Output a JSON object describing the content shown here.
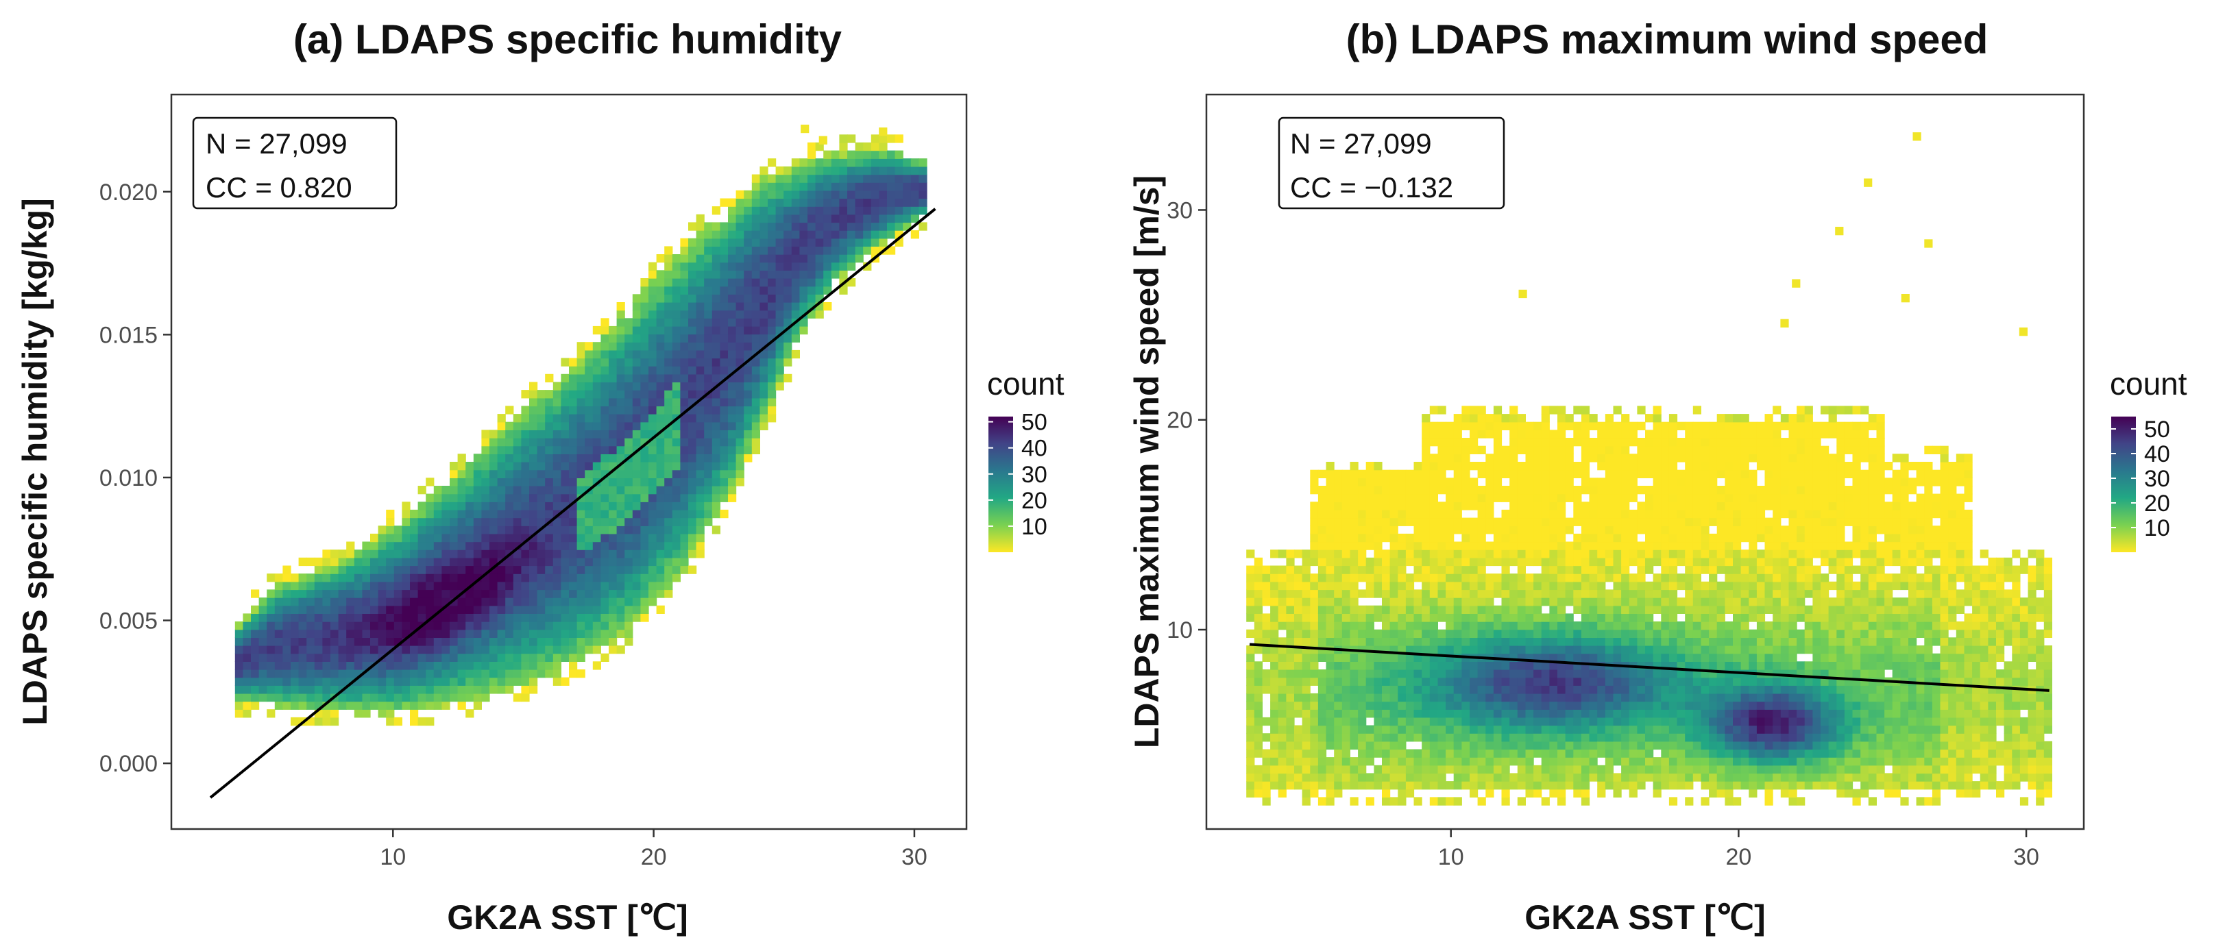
{
  "chart_data": [
    {
      "type": "heatmap",
      "title": "(a) LDAPS specific humidity",
      "xlabel": "GK2A SST [℃]",
      "ylabel": "LDAPS specific humidity [kg/kg]",
      "xlim": [
        1.5,
        32
      ],
      "ylim": [
        -0.0023,
        0.0234
      ],
      "x_ticks": [
        10,
        20,
        30
      ],
      "y_ticks": [
        0.0,
        0.005,
        0.01,
        0.015,
        0.02
      ],
      "y_tick_labels": [
        "0.000",
        "0.005",
        "0.010",
        "0.015",
        "0.020"
      ],
      "annotation": [
        "N = 27,099",
        "CC = 0.820"
      ],
      "n": "27,099",
      "cc": "0.820",
      "legend": {
        "title": "count",
        "ticks": [
          10,
          20,
          30,
          40,
          50
        ],
        "max": 52,
        "position": "right"
      },
      "regression_line": {
        "x": [
          3.0,
          30.8
        ],
        "y": [
          -0.0012,
          0.0194
        ]
      }
    },
    {
      "type": "heatmap",
      "title": "(b) LDAPS maximum wind speed",
      "xlabel": "GK2A SST [℃]",
      "ylabel": "LDAPS maximum wind speed [m/s]",
      "xlim": [
        1.5,
        32
      ],
      "ylim": [
        0.5,
        35.5
      ],
      "x_ticks": [
        10,
        20,
        30
      ],
      "y_ticks": [
        10,
        20,
        30
      ],
      "y_tick_labels": [
        "10",
        "20",
        "30"
      ],
      "annotation": [
        "N = 27,099",
        "CC = −0.132"
      ],
      "n": "27,099",
      "cc": "−0.132",
      "legend": {
        "title": "count",
        "ticks": [
          10,
          20,
          30,
          40,
          50
        ],
        "max": 55,
        "position": "right"
      },
      "regression_line": {
        "x": [
          3.0,
          30.8
        ],
        "y": [
          9.3,
          7.1
        ]
      }
    }
  ],
  "colors": {
    "low": "#fde725",
    "mid": "#21918c",
    "high": "#440154",
    "line": "#000000",
    "axis_text": "#4d4d4d"
  }
}
